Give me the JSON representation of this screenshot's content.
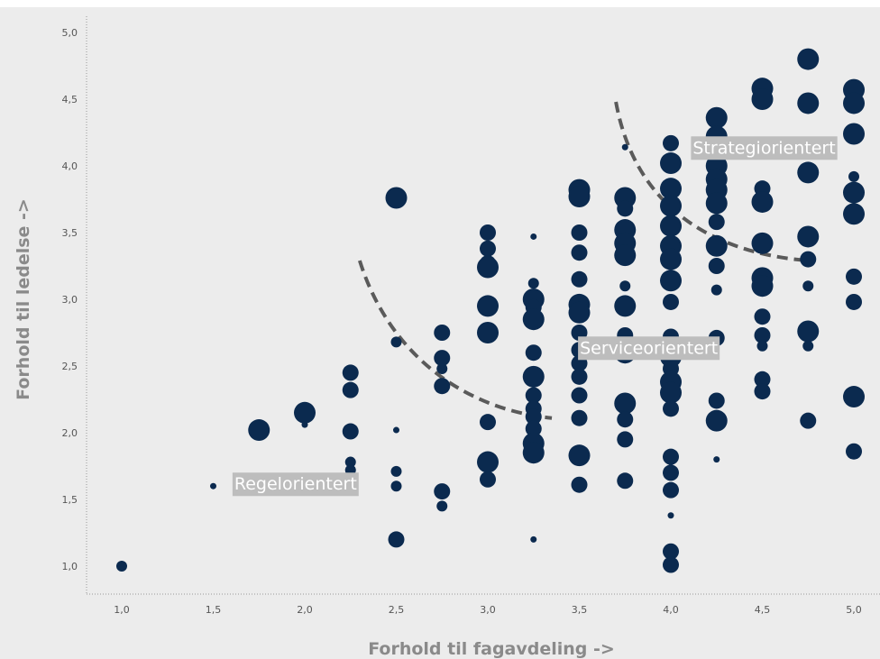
{
  "chart_data": {
    "type": "scatter",
    "title": "",
    "xlabel": "Forhold til fagavdeling ->",
    "ylabel": "Forhold til ledelse ->",
    "xlim": [
      0.8,
      5.1
    ],
    "ylim": [
      0.8,
      5.1
    ],
    "x_ticks": [
      "1,0",
      "1,5",
      "2,0",
      "2,5",
      "3,0",
      "3,5",
      "4,0",
      "4,5",
      "5,0"
    ],
    "y_ticks": [
      "1,0",
      "1,5",
      "2,0",
      "2,5",
      "3,0",
      "3,5",
      "4,0",
      "4,5",
      "5,0"
    ],
    "grid": false,
    "colors": {
      "point": "#0b2a4f",
      "background": "#ececec",
      "label_box": "#bdbdbd",
      "curve": "#5a5a5a"
    },
    "point_size_scale": "bubble size 1 to 4",
    "points": [
      {
        "x": 1.0,
        "y": 1.0,
        "s": 2
      },
      {
        "x": 1.5,
        "y": 1.6,
        "s": 1
      },
      {
        "x": 1.75,
        "y": 2.02,
        "s": 4
      },
      {
        "x": 2.0,
        "y": 2.15,
        "s": 4
      },
      {
        "x": 2.0,
        "y": 2.06,
        "s": 1
      },
      {
        "x": 2.25,
        "y": 2.45,
        "s": 3
      },
      {
        "x": 2.25,
        "y": 2.32,
        "s": 3
      },
      {
        "x": 2.25,
        "y": 2.01,
        "s": 3
      },
      {
        "x": 2.25,
        "y": 1.78,
        "s": 2
      },
      {
        "x": 2.25,
        "y": 1.72,
        "s": 2
      },
      {
        "x": 2.5,
        "y": 3.76,
        "s": 4
      },
      {
        "x": 2.5,
        "y": 2.68,
        "s": 2
      },
      {
        "x": 2.5,
        "y": 2.02,
        "s": 1
      },
      {
        "x": 2.5,
        "y": 1.71,
        "s": 2
      },
      {
        "x": 2.5,
        "y": 1.6,
        "s": 2
      },
      {
        "x": 2.5,
        "y": 1.2,
        "s": 3
      },
      {
        "x": 2.75,
        "y": 2.75,
        "s": 3
      },
      {
        "x": 2.75,
        "y": 2.56,
        "s": 3
      },
      {
        "x": 2.75,
        "y": 2.48,
        "s": 2
      },
      {
        "x": 2.75,
        "y": 2.35,
        "s": 3
      },
      {
        "x": 2.75,
        "y": 1.56,
        "s": 3
      },
      {
        "x": 2.75,
        "y": 1.45,
        "s": 2
      },
      {
        "x": 3.0,
        "y": 3.5,
        "s": 3
      },
      {
        "x": 3.0,
        "y": 3.38,
        "s": 3
      },
      {
        "x": 3.0,
        "y": 3.27,
        "s": 3
      },
      {
        "x": 3.0,
        "y": 3.24,
        "s": 4
      },
      {
        "x": 3.0,
        "y": 2.95,
        "s": 4
      },
      {
        "x": 3.0,
        "y": 2.75,
        "s": 4
      },
      {
        "x": 3.0,
        "y": 2.08,
        "s": 3
      },
      {
        "x": 3.0,
        "y": 1.78,
        "s": 4
      },
      {
        "x": 3.0,
        "y": 1.65,
        "s": 3
      },
      {
        "x": 3.25,
        "y": 3.47,
        "s": 1
      },
      {
        "x": 3.25,
        "y": 3.12,
        "s": 2
      },
      {
        "x": 3.25,
        "y": 3.0,
        "s": 4
      },
      {
        "x": 3.25,
        "y": 2.94,
        "s": 3
      },
      {
        "x": 3.25,
        "y": 2.85,
        "s": 4
      },
      {
        "x": 3.25,
        "y": 2.6,
        "s": 3
      },
      {
        "x": 3.25,
        "y": 2.42,
        "s": 4
      },
      {
        "x": 3.25,
        "y": 2.28,
        "s": 3
      },
      {
        "x": 3.25,
        "y": 2.18,
        "s": 3
      },
      {
        "x": 3.25,
        "y": 2.12,
        "s": 3
      },
      {
        "x": 3.25,
        "y": 2.03,
        "s": 3
      },
      {
        "x": 3.25,
        "y": 1.92,
        "s": 4
      },
      {
        "x": 3.25,
        "y": 1.85,
        "s": 4
      },
      {
        "x": 3.25,
        "y": 1.2,
        "s": 1
      },
      {
        "x": 3.5,
        "y": 3.82,
        "s": 4
      },
      {
        "x": 3.5,
        "y": 3.77,
        "s": 4
      },
      {
        "x": 3.5,
        "y": 3.5,
        "s": 3
      },
      {
        "x": 3.5,
        "y": 3.35,
        "s": 3
      },
      {
        "x": 3.5,
        "y": 3.15,
        "s": 3
      },
      {
        "x": 3.5,
        "y": 2.96,
        "s": 4
      },
      {
        "x": 3.5,
        "y": 2.9,
        "s": 4
      },
      {
        "x": 3.5,
        "y": 2.75,
        "s": 3
      },
      {
        "x": 3.5,
        "y": 2.62,
        "s": 3
      },
      {
        "x": 3.5,
        "y": 2.52,
        "s": 3
      },
      {
        "x": 3.5,
        "y": 2.42,
        "s": 3
      },
      {
        "x": 3.5,
        "y": 2.28,
        "s": 3
      },
      {
        "x": 3.5,
        "y": 2.11,
        "s": 3
      },
      {
        "x": 3.5,
        "y": 1.83,
        "s": 4
      },
      {
        "x": 3.5,
        "y": 1.61,
        "s": 3
      },
      {
        "x": 3.75,
        "y": 4.14,
        "s": 1
      },
      {
        "x": 3.75,
        "y": 3.76,
        "s": 4
      },
      {
        "x": 3.75,
        "y": 3.68,
        "s": 3
      },
      {
        "x": 3.75,
        "y": 3.52,
        "s": 4
      },
      {
        "x": 3.75,
        "y": 3.42,
        "s": 4
      },
      {
        "x": 3.75,
        "y": 3.33,
        "s": 4
      },
      {
        "x": 3.75,
        "y": 3.1,
        "s": 2
      },
      {
        "x": 3.75,
        "y": 2.95,
        "s": 4
      },
      {
        "x": 3.75,
        "y": 2.73,
        "s": 3
      },
      {
        "x": 3.75,
        "y": 2.6,
        "s": 4
      },
      {
        "x": 3.75,
        "y": 2.22,
        "s": 4
      },
      {
        "x": 3.75,
        "y": 2.1,
        "s": 3
      },
      {
        "x": 3.75,
        "y": 1.95,
        "s": 3
      },
      {
        "x": 3.75,
        "y": 1.64,
        "s": 3
      },
      {
        "x": 4.0,
        "y": 4.17,
        "s": 3
      },
      {
        "x": 4.0,
        "y": 4.02,
        "s": 4
      },
      {
        "x": 4.0,
        "y": 3.83,
        "s": 4
      },
      {
        "x": 4.0,
        "y": 3.7,
        "s": 4
      },
      {
        "x": 4.0,
        "y": 3.55,
        "s": 4
      },
      {
        "x": 4.0,
        "y": 3.4,
        "s": 4
      },
      {
        "x": 4.0,
        "y": 3.3,
        "s": 4
      },
      {
        "x": 4.0,
        "y": 3.14,
        "s": 4
      },
      {
        "x": 4.0,
        "y": 2.98,
        "s": 3
      },
      {
        "x": 4.0,
        "y": 2.72,
        "s": 3
      },
      {
        "x": 4.0,
        "y": 2.57,
        "s": 4
      },
      {
        "x": 4.0,
        "y": 2.48,
        "s": 3
      },
      {
        "x": 4.0,
        "y": 2.38,
        "s": 4
      },
      {
        "x": 4.0,
        "y": 2.3,
        "s": 4
      },
      {
        "x": 4.0,
        "y": 2.18,
        "s": 3
      },
      {
        "x": 4.0,
        "y": 1.82,
        "s": 3
      },
      {
        "x": 4.0,
        "y": 1.7,
        "s": 3
      },
      {
        "x": 4.0,
        "y": 1.57,
        "s": 3
      },
      {
        "x": 4.0,
        "y": 1.38,
        "s": 1
      },
      {
        "x": 4.0,
        "y": 1.11,
        "s": 3
      },
      {
        "x": 4.0,
        "y": 1.01,
        "s": 3
      },
      {
        "x": 4.25,
        "y": 4.36,
        "s": 4
      },
      {
        "x": 4.25,
        "y": 4.22,
        "s": 4
      },
      {
        "x": 4.25,
        "y": 4.0,
        "s": 4
      },
      {
        "x": 4.25,
        "y": 3.9,
        "s": 4
      },
      {
        "x": 4.25,
        "y": 3.82,
        "s": 4
      },
      {
        "x": 4.25,
        "y": 3.72,
        "s": 4
      },
      {
        "x": 4.25,
        "y": 3.58,
        "s": 3
      },
      {
        "x": 4.25,
        "y": 3.4,
        "s": 4
      },
      {
        "x": 4.25,
        "y": 3.25,
        "s": 3
      },
      {
        "x": 4.25,
        "y": 3.07,
        "s": 2
      },
      {
        "x": 4.25,
        "y": 2.71,
        "s": 3
      },
      {
        "x": 4.25,
        "y": 2.24,
        "s": 3
      },
      {
        "x": 4.25,
        "y": 2.09,
        "s": 4
      },
      {
        "x": 4.25,
        "y": 1.8,
        "s": 1
      },
      {
        "x": 4.5,
        "y": 4.58,
        "s": 4
      },
      {
        "x": 4.5,
        "y": 4.5,
        "s": 4
      },
      {
        "x": 4.5,
        "y": 3.83,
        "s": 3
      },
      {
        "x": 4.5,
        "y": 3.73,
        "s": 4
      },
      {
        "x": 4.5,
        "y": 3.42,
        "s": 4
      },
      {
        "x": 4.5,
        "y": 3.16,
        "s": 4
      },
      {
        "x": 4.5,
        "y": 3.1,
        "s": 4
      },
      {
        "x": 4.5,
        "y": 2.87,
        "s": 3
      },
      {
        "x": 4.5,
        "y": 2.73,
        "s": 3
      },
      {
        "x": 4.5,
        "y": 2.65,
        "s": 2
      },
      {
        "x": 4.5,
        "y": 2.4,
        "s": 3
      },
      {
        "x": 4.5,
        "y": 2.31,
        "s": 3
      },
      {
        "x": 4.75,
        "y": 4.8,
        "s": 4
      },
      {
        "x": 4.75,
        "y": 4.47,
        "s": 4
      },
      {
        "x": 4.75,
        "y": 3.95,
        "s": 4
      },
      {
        "x": 4.75,
        "y": 3.47,
        "s": 4
      },
      {
        "x": 4.75,
        "y": 3.3,
        "s": 3
      },
      {
        "x": 4.75,
        "y": 3.1,
        "s": 2
      },
      {
        "x": 4.75,
        "y": 2.76,
        "s": 4
      },
      {
        "x": 4.75,
        "y": 2.65,
        "s": 2
      },
      {
        "x": 4.75,
        "y": 2.09,
        "s": 3
      },
      {
        "x": 5.0,
        "y": 4.57,
        "s": 4
      },
      {
        "x": 5.0,
        "y": 4.47,
        "s": 4
      },
      {
        "x": 5.0,
        "y": 4.24,
        "s": 4
      },
      {
        "x": 5.0,
        "y": 3.92,
        "s": 2
      },
      {
        "x": 5.0,
        "y": 3.8,
        "s": 4
      },
      {
        "x": 5.0,
        "y": 3.64,
        "s": 4
      },
      {
        "x": 5.0,
        "y": 3.17,
        "s": 3
      },
      {
        "x": 5.0,
        "y": 2.98,
        "s": 3
      },
      {
        "x": 5.0,
        "y": 2.27,
        "s": 4
      },
      {
        "x": 5.0,
        "y": 1.86,
        "s": 3
      }
    ],
    "annotations": [
      {
        "text": "Regelorientert",
        "x": 1.95,
        "y": 1.62
      },
      {
        "text": "Serviceorientert",
        "x": 3.88,
        "y": 2.64
      },
      {
        "text": "Strategiorientert",
        "x": 4.51,
        "y": 4.14
      }
    ],
    "curves": [
      [
        [
          2.3,
          3.29
        ],
        [
          2.47,
          2.55
        ],
        [
          2.9,
          2.17
        ],
        [
          3.35,
          2.11
        ]
      ],
      [
        [
          3.7,
          4.48
        ],
        [
          3.8,
          3.72
        ],
        [
          4.2,
          3.35
        ],
        [
          4.75,
          3.29
        ]
      ]
    ]
  }
}
